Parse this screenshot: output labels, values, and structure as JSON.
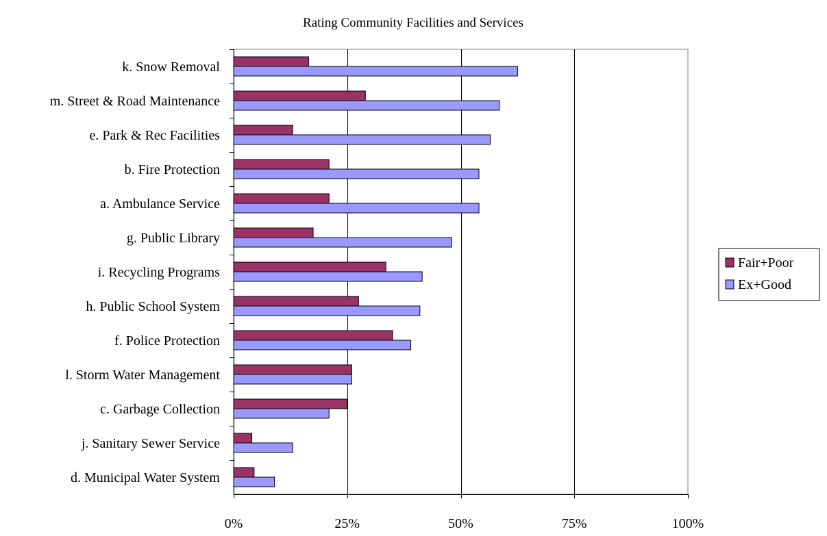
{
  "chart_data": {
    "type": "bar",
    "orientation": "horizontal",
    "title": "Rating Community Facilities and Services",
    "xlabel": "",
    "ylabel": "",
    "xlim": [
      0,
      100
    ],
    "x_ticks": [
      "0%",
      "25%",
      "50%",
      "75%",
      "100%"
    ],
    "x_tick_values": [
      0,
      25,
      50,
      75,
      100
    ],
    "grid": true,
    "legend_position": "right",
    "categories": [
      "k.  Snow Removal",
      "m. Street & Road Maintenance",
      "e.  Park & Rec Facilities",
      "b.  Fire Protection",
      "a.  Ambulance Service",
      "g.  Public Library",
      "i.   Recycling Programs",
      "h.  Public School System",
      "f.   Police Protection",
      "l.   Storm Water Management",
      "c.  Garbage Collection",
      "j.   Sanitary Sewer Service",
      "d.  Municipal Water System"
    ],
    "series": [
      {
        "name": "Fair+Poor",
        "color": "#993366",
        "values": [
          16.5,
          29,
          13,
          21,
          21,
          17.5,
          33.5,
          27.5,
          35,
          26,
          25,
          4,
          4.5
        ]
      },
      {
        "name": "Ex+Good",
        "color": "#9999ff",
        "values": [
          62.5,
          58.5,
          56.5,
          54,
          54,
          48,
          41.5,
          41,
          39,
          26,
          21,
          13,
          9
        ]
      }
    ]
  }
}
